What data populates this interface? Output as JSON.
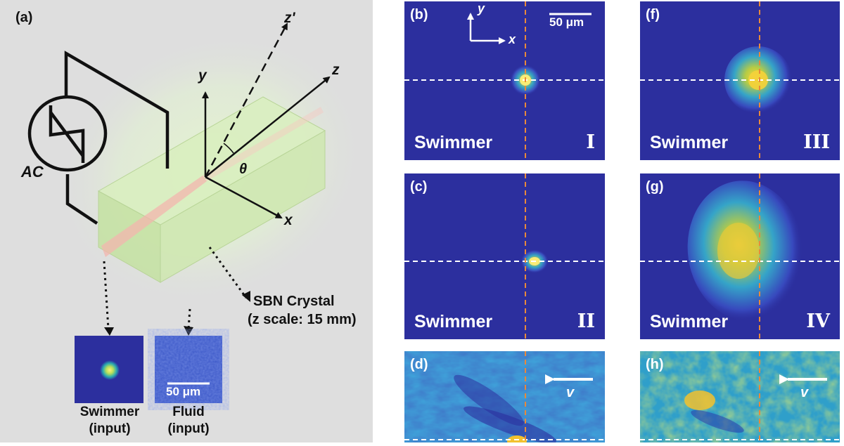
{
  "panel_a": {
    "label": "(a)",
    "axis_z_prime": "z'",
    "axis_z": "z",
    "axis_y": "y",
    "axis_x": "x",
    "angle": "θ",
    "ac_label": "AC",
    "crystal_line1": "SBN Crystal",
    "crystal_line2": "(z scale: 15 mm)",
    "inset_swimmer_line1": "Swimmer",
    "inset_swimmer_line2": "(input)",
    "inset_fluid_line1": "Fluid",
    "inset_fluid_line2": "(input)",
    "scale_bar": "50 μm"
  },
  "panels": {
    "b": {
      "label": "(b)",
      "caption": "Swimmer",
      "roman": "I",
      "scale_bar": "50 μm",
      "axis_y": "y",
      "axis_x": "x"
    },
    "c": {
      "label": "(c)",
      "caption": "Swimmer",
      "roman": "II"
    },
    "d": {
      "label": "(d)",
      "velocity": "v"
    },
    "f": {
      "label": "(f)",
      "caption": "Swimmer",
      "roman": "III"
    },
    "g": {
      "label": "(g)",
      "caption": "Swimmer",
      "roman": "IV"
    },
    "h": {
      "label": "(h)",
      "velocity": "v"
    }
  },
  "colors": {
    "background_dark_blue": "#2c2f9e",
    "guide_dashed_orange": "#e8893a",
    "guide_dashed_white": "#ffffff",
    "crystal_green": "#c9e6a8",
    "beam_pink": "#f5b8b0"
  }
}
